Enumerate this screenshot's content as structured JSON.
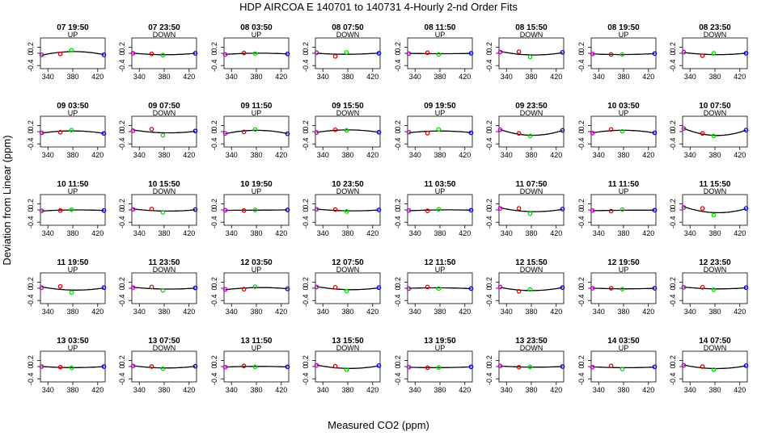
{
  "chart_data": {
    "type": "scatter",
    "title": "HDP   AIRCOA E   140701 to 140731   4-Hourly 2-nd Order Fits",
    "xlabel": "Measured CO2 (ppm)",
    "ylabel": "Deviation from Linear (ppm)",
    "xlim": [
      328,
      432
    ],
    "ylim": [
      -0.5,
      0.5
    ],
    "x_ticks": [
      340,
      380,
      420
    ],
    "y_ticks": [
      -0.4,
      0,
      0.2
    ],
    "x_tick_labels": [
      "340",
      "380",
      "420"
    ],
    "y_tick_labels": [
      "-0.4",
      "0",
      "0.2"
    ],
    "grid": false,
    "layout_rows": 5,
    "layout_cols": 8,
    "standards_x": [
      330,
      360,
      378,
      430
    ],
    "standard_colors": [
      "#c000c0",
      "#e00000",
      "#00dd00",
      "#0000e0"
    ],
    "curve_color": "#000000",
    "panels": [
      {
        "title": "07 19:50",
        "direction": "UP",
        "points": [
          -0.05,
          -0.02,
          0.1,
          -0.05
        ]
      },
      {
        "title": "07 23:50",
        "direction": "DOWN",
        "points": [
          0.0,
          -0.02,
          -0.06,
          0.0
        ]
      },
      {
        "title": "08 03:50",
        "direction": "UP",
        "points": [
          -0.04,
          0.01,
          -0.01,
          -0.02
        ]
      },
      {
        "title": "08 07:50",
        "direction": "DOWN",
        "points": [
          0.02,
          -0.1,
          0.03,
          0.0
        ]
      },
      {
        "title": "08 11:50",
        "direction": "UP",
        "points": [
          -0.01,
          0.02,
          -0.04,
          0.0
        ]
      },
      {
        "title": "08 15:50",
        "direction": "DOWN",
        "points": [
          0.04,
          0.05,
          -0.12,
          0.03
        ]
      },
      {
        "title": "08 19:50",
        "direction": "UP",
        "points": [
          -0.02,
          -0.04,
          -0.04,
          -0.01
        ]
      },
      {
        "title": "08 23:50",
        "direction": "DOWN",
        "points": [
          0.04,
          -0.08,
          0.0,
          0.0
        ]
      },
      {
        "title": "09 03:50",
        "direction": "UP",
        "points": [
          -0.04,
          -0.02,
          0.05,
          -0.06
        ]
      },
      {
        "title": "09 07:50",
        "direction": "DOWN",
        "points": [
          0.03,
          0.08,
          -0.12,
          0.02
        ]
      },
      {
        "title": "09 11:50",
        "direction": "UP",
        "points": [
          -0.06,
          -0.01,
          0.07,
          -0.07
        ]
      },
      {
        "title": "09 15:50",
        "direction": "DOWN",
        "points": [
          -0.03,
          0.06,
          0.04,
          -0.02
        ]
      },
      {
        "title": "09 19:50",
        "direction": "UP",
        "points": [
          -0.02,
          -0.05,
          0.07,
          -0.04
        ]
      },
      {
        "title": "09 23:50",
        "direction": "DOWN",
        "points": [
          0.06,
          -0.06,
          -0.14,
          0.04
        ]
      },
      {
        "title": "10 03:50",
        "direction": "UP",
        "points": [
          -0.05,
          0.07,
          0.01,
          -0.04
        ]
      },
      {
        "title": "10 07:50",
        "direction": "DOWN",
        "points": [
          0.1,
          -0.06,
          -0.14,
          0.05
        ]
      },
      {
        "title": "10 11:50",
        "direction": "UP",
        "points": [
          -0.03,
          -0.02,
          0.01,
          -0.02
        ]
      },
      {
        "title": "10 15:50",
        "direction": "DOWN",
        "points": [
          0.02,
          0.03,
          -0.08,
          0.01
        ]
      },
      {
        "title": "10 19:50",
        "direction": "UP",
        "points": [
          -0.01,
          -0.02,
          0.0,
          0.0
        ]
      },
      {
        "title": "10 23:50",
        "direction": "DOWN",
        "points": [
          0.02,
          0.01,
          -0.05,
          0.0
        ]
      },
      {
        "title": "11 03:50",
        "direction": "UP",
        "points": [
          -0.02,
          -0.03,
          0.02,
          -0.01
        ]
      },
      {
        "title": "11 07:50",
        "direction": "DOWN",
        "points": [
          0.05,
          0.05,
          -0.12,
          0.03
        ]
      },
      {
        "title": "11 11:50",
        "direction": "UP",
        "points": [
          -0.02,
          -0.04,
          0.01,
          -0.01
        ]
      },
      {
        "title": "11 15:50",
        "direction": "DOWN",
        "points": [
          0.08,
          0.05,
          -0.17,
          0.05
        ]
      },
      {
        "title": "11 19:50",
        "direction": "UP",
        "points": [
          0.02,
          0.06,
          -0.14,
          0.02
        ]
      },
      {
        "title": "11 23:50",
        "direction": "DOWN",
        "points": [
          0.02,
          0.04,
          -0.07,
          0.01
        ]
      },
      {
        "title": "12 03:50",
        "direction": "UP",
        "points": [
          -0.04,
          -0.03,
          0.05,
          -0.02
        ]
      },
      {
        "title": "12 07:50",
        "direction": "DOWN",
        "points": [
          0.04,
          0.03,
          -0.09,
          0.02
        ]
      },
      {
        "title": "12 11:50",
        "direction": "UP",
        "points": [
          -0.01,
          0.04,
          -0.01,
          -0.01
        ]
      },
      {
        "title": "12 15:50",
        "direction": "DOWN",
        "points": [
          0.04,
          -0.1,
          -0.04,
          0.02
        ]
      },
      {
        "title": "12 19:50",
        "direction": "UP",
        "points": [
          0.0,
          0.0,
          -0.03,
          0.0
        ]
      },
      {
        "title": "12 23:50",
        "direction": "DOWN",
        "points": [
          0.03,
          0.03,
          -0.05,
          0.02
        ]
      },
      {
        "title": "13 03:50",
        "direction": "UP",
        "points": [
          0.0,
          -0.02,
          -0.04,
          0.0
        ]
      },
      {
        "title": "13 07:50",
        "direction": "DOWN",
        "points": [
          0.02,
          0.0,
          -0.07,
          0.01
        ]
      },
      {
        "title": "13 11:50",
        "direction": "UP",
        "points": [
          -0.02,
          0.02,
          -0.01,
          -0.01
        ]
      },
      {
        "title": "13 15:50",
        "direction": "DOWN",
        "points": [
          0.04,
          0.01,
          -0.1,
          0.03
        ]
      },
      {
        "title": "13 19:50",
        "direction": "UP",
        "points": [
          -0.02,
          -0.04,
          -0.03,
          -0.01
        ]
      },
      {
        "title": "13 23:50",
        "direction": "DOWN",
        "points": [
          0.02,
          -0.02,
          -0.01,
          0.0
        ]
      },
      {
        "title": "14 03:50",
        "direction": "UP",
        "points": [
          -0.02,
          0.02,
          -0.08,
          -0.01
        ]
      },
      {
        "title": "14 07:50",
        "direction": "DOWN",
        "points": [
          0.04,
          0.0,
          -0.1,
          0.03
        ]
      }
    ]
  }
}
